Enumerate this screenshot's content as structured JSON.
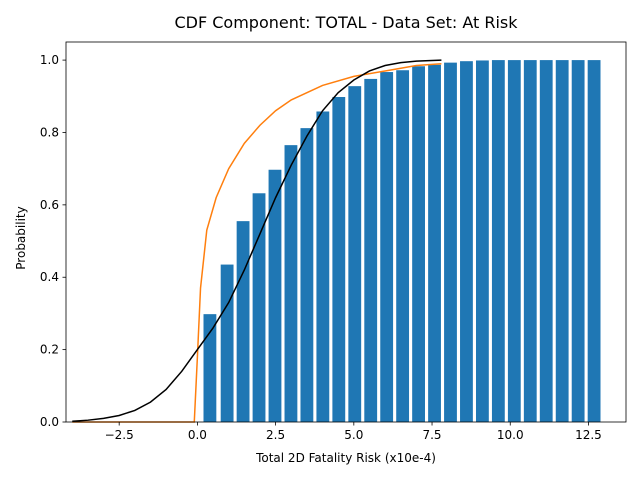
{
  "chart_data": {
    "type": "bar",
    "title": "CDF Component: TOTAL - Data Set: At Risk",
    "xlabel": "Total 2D Fatality Risk (x10e-4)",
    "ylabel": "Probability",
    "xlim": [
      -4.2,
      13.7
    ],
    "ylim": [
      0,
      1.05
    ],
    "xticks": [
      -2.5,
      0.0,
      2.5,
      5.0,
      7.5,
      10.0,
      12.5
    ],
    "xtick_labels": [
      "−2.5",
      "0.0",
      "2.5",
      "5.0",
      "7.5",
      "10.0",
      "12.5"
    ],
    "yticks": [
      0.0,
      0.2,
      0.4,
      0.6,
      0.8,
      1.0
    ],
    "ytick_labels": [
      "0.0",
      "0.2",
      "0.4",
      "0.6",
      "0.8",
      "1.0"
    ],
    "grid": false,
    "legend": "none",
    "bars": {
      "color": "#1f77b4",
      "width": 0.41,
      "x": [
        0.4,
        0.95,
        1.46,
        1.97,
        2.48,
        2.99,
        3.5,
        4.01,
        4.52,
        5.03,
        5.54,
        6.05,
        6.56,
        7.07,
        7.58,
        8.09,
        8.6,
        9.11,
        9.62,
        10.13,
        10.64,
        11.15,
        11.66,
        12.17,
        12.68
      ],
      "values": [
        0.298,
        0.435,
        0.555,
        0.632,
        0.697,
        0.765,
        0.812,
        0.858,
        0.898,
        0.928,
        0.948,
        0.967,
        0.972,
        0.983,
        0.987,
        0.993,
        0.997,
        0.999,
        1.0,
        1.0,
        1.0,
        1.0,
        1.0,
        1.0,
        1.0
      ]
    },
    "series": [
      {
        "color": "#ff7f0e",
        "x": [
          -4.0,
          -0.1,
          0.0,
          0.1,
          0.3,
          0.6,
          1.0,
          1.5,
          2.0,
          2.5,
          3.0,
          4.0,
          5.0,
          6.0,
          7.0,
          7.8
        ],
        "y": [
          0.0,
          0.0,
          0.18,
          0.37,
          0.53,
          0.62,
          0.7,
          0.77,
          0.82,
          0.86,
          0.89,
          0.93,
          0.955,
          0.97,
          0.985,
          0.99
        ]
      },
      {
        "color": "#000000",
        "x": [
          -4.0,
          -3.5,
          -3.0,
          -2.5,
          -2.0,
          -1.5,
          -1.0,
          -0.5,
          0.0,
          0.5,
          1.0,
          1.5,
          2.0,
          2.5,
          3.0,
          3.5,
          4.0,
          4.5,
          5.0,
          5.5,
          6.0,
          6.5,
          7.0,
          7.5,
          7.8
        ],
        "y": [
          0.002,
          0.005,
          0.01,
          0.018,
          0.032,
          0.055,
          0.09,
          0.14,
          0.2,
          0.26,
          0.33,
          0.42,
          0.52,
          0.62,
          0.71,
          0.79,
          0.86,
          0.91,
          0.945,
          0.97,
          0.985,
          0.993,
          0.997,
          0.999,
          1.0
        ]
      }
    ]
  }
}
